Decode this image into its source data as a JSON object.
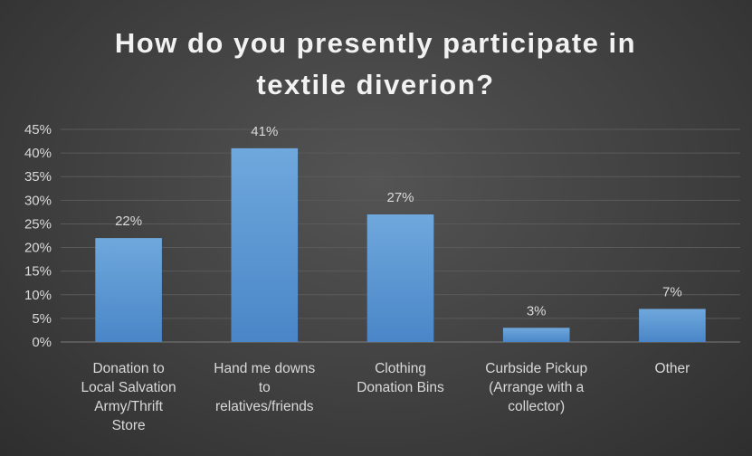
{
  "chart_data": {
    "type": "bar",
    "title_lines": [
      "How do you presently participate in",
      "textile diverion?"
    ],
    "categories": [
      "Donation to Local Salvation Army/Thrift Store",
      "Hand me downs to relatives/friends",
      "Clothing Donation Bins",
      "Curbside Pickup (Arrange with a collector)",
      "Other"
    ],
    "category_label_lines": [
      [
        "Donation to",
        "Local Salvation",
        "Army/Thrift",
        "Store"
      ],
      [
        "Hand me downs",
        "to",
        "relatives/friends"
      ],
      [
        "Clothing",
        "Donation Bins"
      ],
      [
        "Curbside Pickup",
        "(Arrange with a",
        "collector)"
      ],
      [
        "Other"
      ]
    ],
    "values": [
      22,
      41,
      27,
      3,
      7
    ],
    "data_labels": [
      "22%",
      "41%",
      "27%",
      "3%",
      "7%"
    ],
    "y_ticks": [
      "0%",
      "5%",
      "10%",
      "15%",
      "20%",
      "25%",
      "30%",
      "35%",
      "40%",
      "45%"
    ],
    "ylim": [
      0,
      45
    ],
    "y_unit": "%",
    "grid": true,
    "legend": "none",
    "colors": {
      "bar_top": "#6fa8dc",
      "bar_bottom": "#4a86c8",
      "text": "#d9d9d9",
      "title": "#f2f2f2",
      "grid": "#5a5a5a"
    }
  }
}
